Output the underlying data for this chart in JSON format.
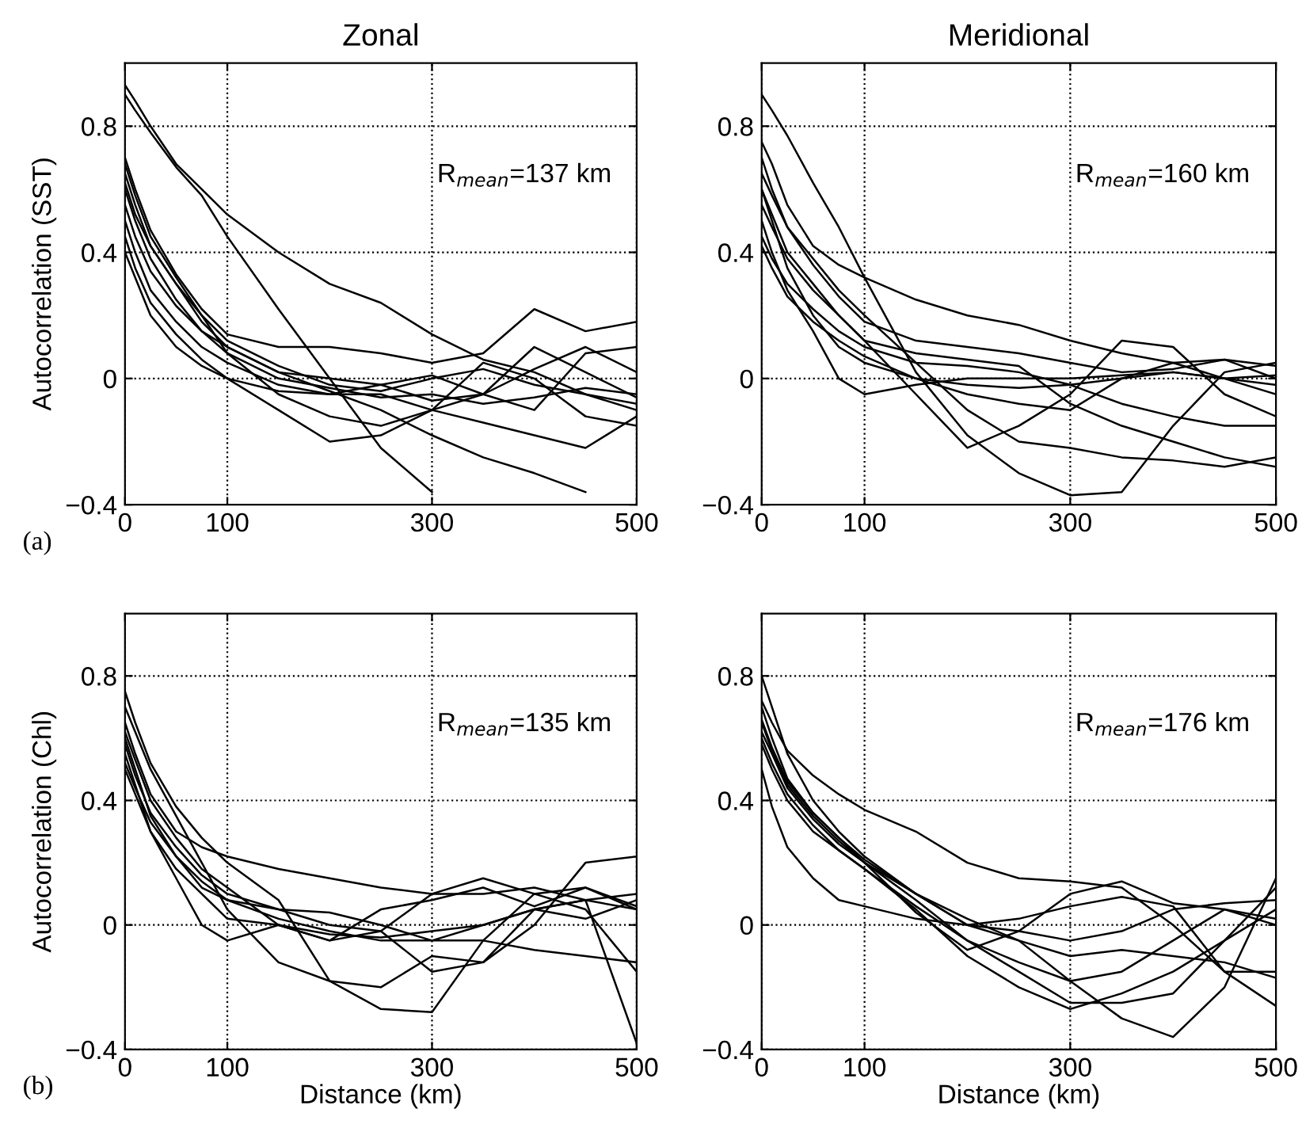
{
  "chart_data": [
    {
      "type": "line",
      "title": "Zonal",
      "ylabel": "Autocorrelation (SST)",
      "annotations": [
        "R$_{mean}$=137 km",
        "(a)"
      ],
      "xlim": [
        0,
        500
      ],
      "ylim": [
        -0.4,
        1.0
      ],
      "xticks": [
        0,
        100,
        300,
        500
      ],
      "yticks": [
        -0.4,
        0,
        0.4,
        0.8
      ],
      "grid": true,
      "line_style": "solid",
      "x": [
        0,
        10,
        25,
        50,
        75,
        100,
        150,
        200,
        250,
        300,
        350,
        400,
        450,
        500
      ],
      "series": [
        {
          "color": "#000000",
          "values": [
            0.93,
            0.88,
            0.8,
            0.68,
            0.6,
            0.52,
            0.4,
            0.3,
            0.24,
            0.14,
            0.06,
            0.02,
            -0.05,
            -0.08
          ]
        },
        {
          "color": "#000000",
          "values": [
            0.9,
            0.85,
            0.78,
            0.67,
            0.58,
            0.45,
            0.22,
            0.0,
            -0.22,
            -0.36,
            null,
            null,
            null,
            null
          ]
        },
        {
          "color": "#000000",
          "values": [
            0.7,
            0.6,
            0.47,
            0.33,
            0.22,
            0.14,
            0.1,
            0.1,
            0.08,
            0.05,
            0.08,
            0.22,
            0.15,
            0.18
          ]
        },
        {
          "color": "#000000",
          "values": [
            0.65,
            0.55,
            0.42,
            0.3,
            0.2,
            0.12,
            0.04,
            -0.02,
            -0.04,
            0.0,
            0.03,
            -0.02,
            -0.05,
            -0.1
          ]
        },
        {
          "color": "#000000",
          "values": [
            0.6,
            0.5,
            0.38,
            0.25,
            0.15,
            0.08,
            0.0,
            -0.03,
            -0.06,
            -0.05,
            -0.08,
            -0.06,
            -0.03,
            -0.05
          ]
        },
        {
          "color": "#000000",
          "values": [
            0.5,
            0.4,
            0.28,
            0.18,
            0.1,
            0.05,
            -0.02,
            -0.05,
            -0.05,
            -0.1,
            -0.14,
            -0.18,
            -0.22,
            -0.12
          ]
        },
        {
          "color": "#000000",
          "values": [
            0.45,
            0.35,
            0.24,
            0.14,
            0.06,
            0.0,
            -0.1,
            -0.2,
            -0.18,
            -0.1,
            0.05,
            0.0,
            -0.12,
            -0.15
          ]
        },
        {
          "color": "#000000",
          "values": [
            0.4,
            0.32,
            0.2,
            0.1,
            0.04,
            0.0,
            -0.04,
            -0.05,
            -0.02,
            0.01,
            -0.05,
            -0.1,
            0.08,
            0.1
          ]
        },
        {
          "color": "#000000",
          "values": [
            0.68,
            0.58,
            0.45,
            0.32,
            0.2,
            0.08,
            -0.05,
            -0.12,
            -0.15,
            -0.1,
            -0.05,
            0.03,
            0.1,
            0.02
          ]
        },
        {
          "color": "#000000",
          "values": [
            0.55,
            0.45,
            0.34,
            0.23,
            0.15,
            0.1,
            0.02,
            0.0,
            -0.02,
            -0.07,
            -0.05,
            0.1,
            0.02,
            -0.06
          ]
        },
        {
          "color": "#000000",
          "values": [
            0.62,
            0.52,
            0.42,
            0.3,
            0.18,
            0.1,
            0.02,
            -0.04,
            -0.1,
            -0.18,
            -0.25,
            -0.3,
            -0.36,
            null
          ]
        }
      ]
    },
    {
      "type": "line",
      "title": "Meridional",
      "annotations": [
        "R$_{mean}$=160 km"
      ],
      "xlim": [
        0,
        500
      ],
      "ylim": [
        -0.4,
        1.0
      ],
      "xticks": [
        0,
        100,
        300,
        500
      ],
      "yticks": [
        -0.4,
        0,
        0.4,
        0.8
      ],
      "grid": true,
      "line_style": "solid",
      "x": [
        0,
        10,
        25,
        50,
        75,
        100,
        150,
        200,
        250,
        300,
        350,
        400,
        450,
        500
      ],
      "series": [
        {
          "color": "#000000",
          "values": [
            0.9,
            0.85,
            0.77,
            0.62,
            0.48,
            0.32,
            0.02,
            -0.18,
            -0.3,
            -0.37,
            -0.36,
            -0.15,
            0.02,
            0.05
          ]
        },
        {
          "color": "#000000",
          "values": [
            0.75,
            0.68,
            0.55,
            0.42,
            0.36,
            0.32,
            0.25,
            0.2,
            0.17,
            0.12,
            0.08,
            0.05,
            0.0,
            -0.05
          ]
        },
        {
          "color": "#000000",
          "values": [
            0.7,
            0.6,
            0.48,
            0.36,
            0.26,
            0.18,
            0.12,
            0.1,
            0.08,
            0.05,
            0.02,
            0.03,
            0.06,
            0.04
          ]
        },
        {
          "color": "#000000",
          "values": [
            0.6,
            0.5,
            0.35,
            0.2,
            0.1,
            0.05,
            0.0,
            -0.02,
            -0.03,
            -0.02,
            0.0,
            0.02,
            0.0,
            -0.02
          ]
        },
        {
          "color": "#000000",
          "values": [
            0.5,
            0.4,
            0.28,
            0.15,
            0.0,
            -0.05,
            -0.02,
            0.0,
            0.0,
            0.0,
            0.01,
            0.02,
            0.0,
            0.01
          ]
        },
        {
          "color": "#000000",
          "values": [
            0.65,
            0.58,
            0.48,
            0.38,
            0.28,
            0.2,
            0.05,
            -0.1,
            -0.2,
            -0.22,
            -0.25,
            -0.26,
            -0.28,
            -0.25
          ]
        },
        {
          "color": "#000000",
          "values": [
            0.55,
            0.48,
            0.38,
            0.28,
            0.2,
            0.12,
            -0.05,
            -0.22,
            -0.15,
            -0.05,
            0.12,
            0.1,
            -0.05,
            -0.12
          ]
        },
        {
          "color": "#000000",
          "values": [
            0.45,
            0.38,
            0.3,
            0.22,
            0.15,
            0.1,
            0.05,
            0.04,
            0.02,
            -0.02,
            -0.08,
            -0.12,
            -0.15,
            -0.15
          ]
        },
        {
          "color": "#000000",
          "values": [
            0.6,
            0.52,
            0.4,
            0.3,
            0.2,
            0.12,
            0.08,
            0.06,
            0.04,
            -0.08,
            -0.15,
            -0.2,
            -0.25,
            -0.28
          ]
        },
        {
          "color": "#000000",
          "values": [
            0.42,
            0.35,
            0.26,
            0.18,
            0.12,
            0.07,
            0.0,
            -0.05,
            -0.08,
            -0.1,
            0.0,
            0.05,
            0.06,
            0.0
          ]
        }
      ]
    },
    {
      "type": "line",
      "xlabel": "Distance (km)",
      "ylabel": "Autocorrelation (Chl)",
      "annotations": [
        "R$_{mean}$=135 km",
        "(b)"
      ],
      "xlim": [
        0,
        500
      ],
      "ylim": [
        -0.4,
        1.0
      ],
      "xticks": [
        0,
        100,
        300,
        500
      ],
      "yticks": [
        -0.4,
        0,
        0.4,
        0.8
      ],
      "grid": true,
      "line_style": "solid",
      "x": [
        0,
        10,
        25,
        50,
        75,
        100,
        150,
        200,
        250,
        300,
        350,
        400,
        450,
        500
      ],
      "series": [
        {
          "color": "#000000",
          "values": [
            0.75,
            0.65,
            0.52,
            0.38,
            0.28,
            0.2,
            0.08,
            -0.18,
            -0.27,
            -0.28,
            -0.05,
            0.1,
            0.12,
            0.05
          ]
        },
        {
          "color": "#000000",
          "values": [
            0.7,
            0.62,
            0.5,
            0.35,
            0.2,
            0.05,
            -0.12,
            -0.18,
            -0.2,
            -0.1,
            -0.12,
            0.05,
            0.08,
            0.05
          ]
        },
        {
          "color": "#000000",
          "values": [
            0.65,
            0.55,
            0.42,
            0.3,
            0.25,
            0.22,
            0.18,
            0.15,
            0.12,
            0.1,
            0.1,
            0.12,
            0.08,
            -0.38
          ]
        },
        {
          "color": "#000000",
          "values": [
            0.6,
            0.5,
            0.35,
            0.22,
            0.12,
            0.08,
            0.05,
            0.04,
            0.0,
            -0.05,
            0.0,
            0.05,
            0.08,
            0.1
          ]
        },
        {
          "color": "#000000",
          "values": [
            0.55,
            0.45,
            0.3,
            0.15,
            0.0,
            -0.05,
            0.0,
            -0.03,
            -0.04,
            -0.02,
            0.0,
            0.05,
            0.02,
            0.08
          ]
        },
        {
          "color": "#000000",
          "values": [
            0.5,
            0.42,
            0.3,
            0.18,
            0.1,
            0.02,
            0.0,
            -0.05,
            -0.02,
            0.1,
            0.15,
            0.1,
            0.05,
            -0.15
          ]
        },
        {
          "color": "#000000",
          "values": [
            0.58,
            0.48,
            0.36,
            0.25,
            0.16,
            0.1,
            0.05,
            0.0,
            -0.02,
            -0.15,
            -0.12,
            0.0,
            0.2,
            0.22
          ]
        },
        {
          "color": "#000000",
          "values": [
            0.52,
            0.44,
            0.33,
            0.22,
            0.14,
            0.08,
            0.02,
            -0.02,
            -0.05,
            -0.05,
            -0.05,
            -0.08,
            -0.1,
            -0.12
          ]
        },
        {
          "color": "#000000",
          "values": [
            0.62,
            0.53,
            0.4,
            0.28,
            0.18,
            0.12,
            0.0,
            -0.05,
            0.05,
            0.08,
            0.12,
            0.06,
            0.12,
            0.06
          ]
        }
      ]
    },
    {
      "type": "line",
      "xlabel": "Distance (km)",
      "annotations": [
        "R$_{mean}$=176 km"
      ],
      "xlim": [
        0,
        500
      ],
      "ylim": [
        -0.4,
        1.0
      ],
      "xticks": [
        0,
        100,
        300,
        500
      ],
      "yticks": [
        -0.4,
        0,
        0.4,
        0.8
      ],
      "grid": true,
      "line_style": "solid",
      "x": [
        0,
        10,
        25,
        50,
        75,
        100,
        150,
        200,
        250,
        300,
        350,
        400,
        450,
        500
      ],
      "series": [
        {
          "color": "#000000",
          "values": [
            0.72,
            0.65,
            0.56,
            0.48,
            0.42,
            0.37,
            0.3,
            0.2,
            0.15,
            0.14,
            0.12,
            0.0,
            -0.15,
            -0.26
          ]
        },
        {
          "color": "#000000",
          "values": [
            0.8,
            0.7,
            0.55,
            0.4,
            0.3,
            0.22,
            0.1,
            0.0,
            -0.05,
            -0.18,
            -0.3,
            -0.36,
            -0.2,
            0.15
          ]
        },
        {
          "color": "#000000",
          "values": [
            0.65,
            0.56,
            0.45,
            0.35,
            0.27,
            0.2,
            0.08,
            -0.05,
            -0.15,
            -0.25,
            -0.25,
            -0.22,
            -0.05,
            0.12
          ]
        },
        {
          "color": "#000000",
          "values": [
            0.6,
            0.52,
            0.42,
            0.32,
            0.24,
            0.18,
            0.05,
            -0.1,
            -0.2,
            -0.27,
            -0.22,
            -0.15,
            -0.05,
            0.05
          ]
        },
        {
          "color": "#000000",
          "values": [
            0.5,
            0.38,
            0.25,
            0.15,
            0.08,
            0.06,
            0.02,
            0.0,
            0.02,
            0.06,
            0.09,
            0.06,
            -0.15,
            -0.15
          ]
        },
        {
          "color": "#000000",
          "values": [
            0.62,
            0.55,
            0.44,
            0.34,
            0.26,
            0.2,
            0.1,
            0.0,
            -0.02,
            -0.05,
            -0.02,
            0.05,
            0.07,
            0.08
          ]
        },
        {
          "color": "#000000",
          "values": [
            0.7,
            0.6,
            0.47,
            0.36,
            0.28,
            0.21,
            0.1,
            0.02,
            -0.05,
            -0.1,
            -0.08,
            -0.1,
            -0.12,
            -0.17
          ]
        },
        {
          "color": "#000000",
          "values": [
            0.58,
            0.5,
            0.4,
            0.3,
            0.24,
            0.18,
            0.06,
            -0.05,
            -0.12,
            -0.18,
            -0.15,
            -0.05,
            0.05,
            0.0
          ]
        },
        {
          "color": "#000000",
          "values": [
            0.66,
            0.57,
            0.46,
            0.36,
            0.28,
            0.2,
            0.04,
            -0.08,
            -0.02,
            0.1,
            0.14,
            0.07,
            0.05,
            0.02
          ]
        }
      ]
    }
  ]
}
